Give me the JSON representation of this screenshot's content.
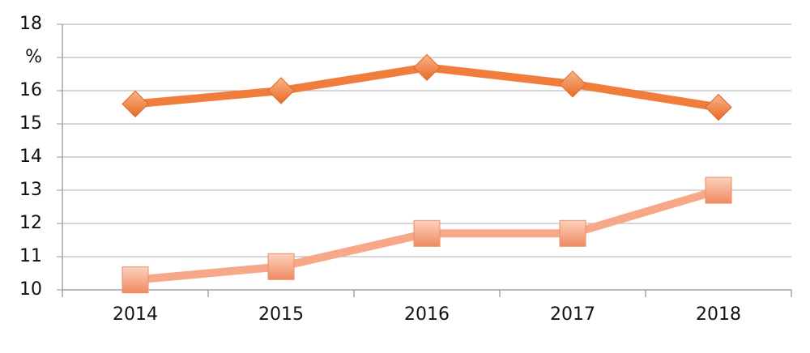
{
  "chart_data": {
    "type": "line",
    "categories": [
      "2014",
      "2015",
      "2016",
      "2017",
      "2018"
    ],
    "series": [
      {
        "color": "#f07d3c",
        "marker": "diamond",
        "values": [
          15.6,
          16.0,
          16.7,
          16.2,
          15.5
        ]
      },
      {
        "color": "#f7a889",
        "marker": "square",
        "values": [
          10.3,
          10.7,
          11.7,
          11.7,
          13.0
        ]
      }
    ],
    "ylim": [
      10,
      18
    ],
    "yticks": [
      10,
      11,
      12,
      13,
      14,
      15,
      16,
      {
        "value": 17,
        "label": "%"
      },
      18
    ],
    "grid": true
  }
}
